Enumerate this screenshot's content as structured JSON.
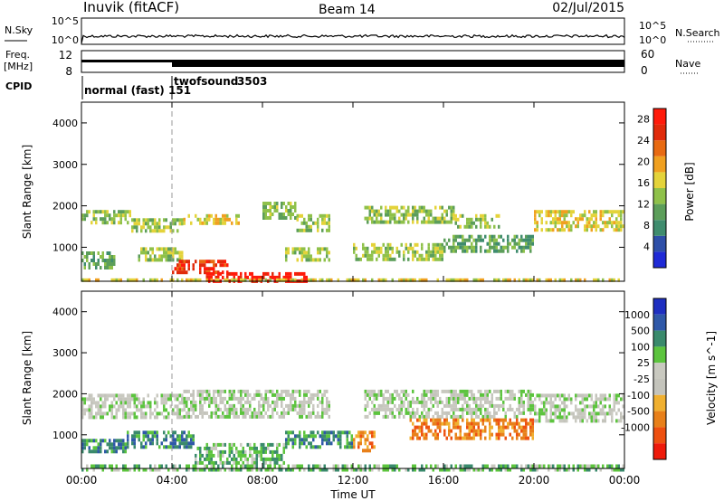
{
  "header": {
    "station": "Inuvik (fitACF)",
    "beam": "Beam 14",
    "date": "02/Jul/2015"
  },
  "summary_panels": {
    "nsky_label": "N.Sky",
    "nsky_ticks": [
      "10^5",
      "10^0"
    ],
    "nsearch_label": "N.Search",
    "freq_label_line1": "Freq.",
    "freq_label_line2": "[MHz]",
    "freq_ticks": [
      "12",
      "8"
    ],
    "nave_label": "Nave",
    "nave_ticks": [
      "60",
      "0"
    ],
    "cpid_label": "CPID",
    "cpid_segments": [
      {
        "name": "normal (fast)",
        "id": "151",
        "start_hour": 0
      },
      {
        "name": "twofsound",
        "id": "3503",
        "start_hour": 4
      }
    ]
  },
  "colors": {
    "power_scale": [
      "#1f2ad6",
      "#2e4fa8",
      "#3f8c6e",
      "#5c9e5a",
      "#8fc14a",
      "#e4d33a",
      "#f0a020",
      "#e86a12",
      "#e02a0a",
      "#ff1a0a"
    ],
    "velocity_scale": [
      "#1e2fc0",
      "#2f58a8",
      "#3a8a6c",
      "#5cc43e",
      "#c9c9c0",
      "#c4c4bc",
      "#f0b030",
      "#e8801a",
      "#ee5010",
      "#ee1a0a"
    ]
  },
  "chart_data": [
    {
      "type": "heatmap",
      "name": "power",
      "xlabel": "",
      "ylabel": "Slant Range [km]",
      "xlim": [
        0,
        24
      ],
      "ylim": [
        180,
        4500
      ],
      "yticks": [
        1000,
        2000,
        3000,
        4000
      ],
      "colorbar": {
        "label": "Power [dB]",
        "ticks": [
          4,
          8,
          12,
          16,
          20,
          24,
          28
        ],
        "range": [
          0,
          30
        ]
      },
      "echo_bands": [
        {
          "x": [
            0,
            2.2
          ],
          "range_km": [
            1600,
            1900
          ],
          "value_db": 14
        },
        {
          "x": [
            2.2,
            4.5
          ],
          "range_km": [
            1400,
            1700
          ],
          "value_db": 12
        },
        {
          "x": [
            4.5,
            7.0
          ],
          "range_km": [
            1550,
            1800
          ],
          "value_db": 16
        },
        {
          "x": [
            8.0,
            9.5
          ],
          "range_km": [
            1700,
            2100
          ],
          "value_db": 14
        },
        {
          "x": [
            9.5,
            11.0
          ],
          "range_km": [
            1400,
            1800
          ],
          "value_db": 12
        },
        {
          "x": [
            12.5,
            16.5
          ],
          "range_km": [
            1600,
            2000
          ],
          "value_db": 14
        },
        {
          "x": [
            16.5,
            18.5
          ],
          "range_km": [
            1500,
            1800
          ],
          "value_db": 12
        },
        {
          "x": [
            20.0,
            24.0
          ],
          "range_km": [
            1450,
            1900
          ],
          "value_db": 16
        },
        {
          "x": [
            0,
            1.5
          ],
          "range_km": [
            500,
            900
          ],
          "value_db": 10
        },
        {
          "x": [
            2.5,
            4.5
          ],
          "range_km": [
            700,
            1000
          ],
          "value_db": 12
        },
        {
          "x": [
            4.0,
            6.5
          ],
          "range_km": [
            400,
            700
          ],
          "value_db": 24
        },
        {
          "x": [
            5.5,
            10.0
          ],
          "range_km": [
            180,
            400
          ],
          "value_db": 30
        },
        {
          "x": [
            9.0,
            11.0
          ],
          "range_km": [
            700,
            1000
          ],
          "value_db": 12
        },
        {
          "x": [
            12.0,
            16.0
          ],
          "range_km": [
            700,
            1100
          ],
          "value_db": 14
        },
        {
          "x": [
            16.0,
            20.0
          ],
          "range_km": [
            900,
            1300
          ],
          "value_db": 10
        },
        {
          "x": [
            0,
            24.0
          ],
          "range_km": [
            180,
            250
          ],
          "value_db": 16
        }
      ]
    },
    {
      "type": "heatmap",
      "name": "velocity",
      "xlabel": "Time UT",
      "ylabel": "Slant Range [km]",
      "xlim": [
        0,
        24
      ],
      "ylim": [
        180,
        4500
      ],
      "xticks": [
        "00:00",
        "04:00",
        "08:00",
        "12:00",
        "16:00",
        "20:00",
        "00:00"
      ],
      "yticks": [
        1000,
        2000,
        3000,
        4000
      ],
      "colorbar": {
        "label": "Velocity [m s^-1]",
        "ticks": [
          "1000",
          "500",
          "100",
          "25",
          "-25",
          "-100",
          "-500",
          "-1000"
        ]
      },
      "echo_bands": [
        {
          "x": [
            0,
            4.5
          ],
          "range_km": [
            1400,
            2000
          ],
          "value_ms": 0
        },
        {
          "x": [
            4.5,
            11.0
          ],
          "range_km": [
            1400,
            2100
          ],
          "value_ms": 0
        },
        {
          "x": [
            12.5,
            20.0
          ],
          "range_km": [
            1450,
            2100
          ],
          "value_ms": 0
        },
        {
          "x": [
            20.0,
            24.0
          ],
          "range_km": [
            1300,
            2000
          ],
          "value_ms": 0
        },
        {
          "x": [
            0,
            2.0
          ],
          "range_km": [
            600,
            900
          ],
          "value_ms": 200
        },
        {
          "x": [
            2.0,
            5.0
          ],
          "range_km": [
            700,
            1100
          ],
          "value_ms": 150
        },
        {
          "x": [
            5.0,
            9.0
          ],
          "range_km": [
            350,
            800
          ],
          "value_ms": 80
        },
        {
          "x": [
            9.0,
            12.0
          ],
          "range_km": [
            700,
            1100
          ],
          "value_ms": 150
        },
        {
          "x": [
            12.0,
            13.0
          ],
          "range_km": [
            600,
            1100
          ],
          "value_ms": -300
        },
        {
          "x": [
            14.5,
            20.0
          ],
          "range_km": [
            900,
            1400
          ],
          "value_ms": -300
        },
        {
          "x": [
            0,
            24.0
          ],
          "range_km": [
            180,
            280
          ],
          "value_ms": 60
        }
      ]
    }
  ]
}
